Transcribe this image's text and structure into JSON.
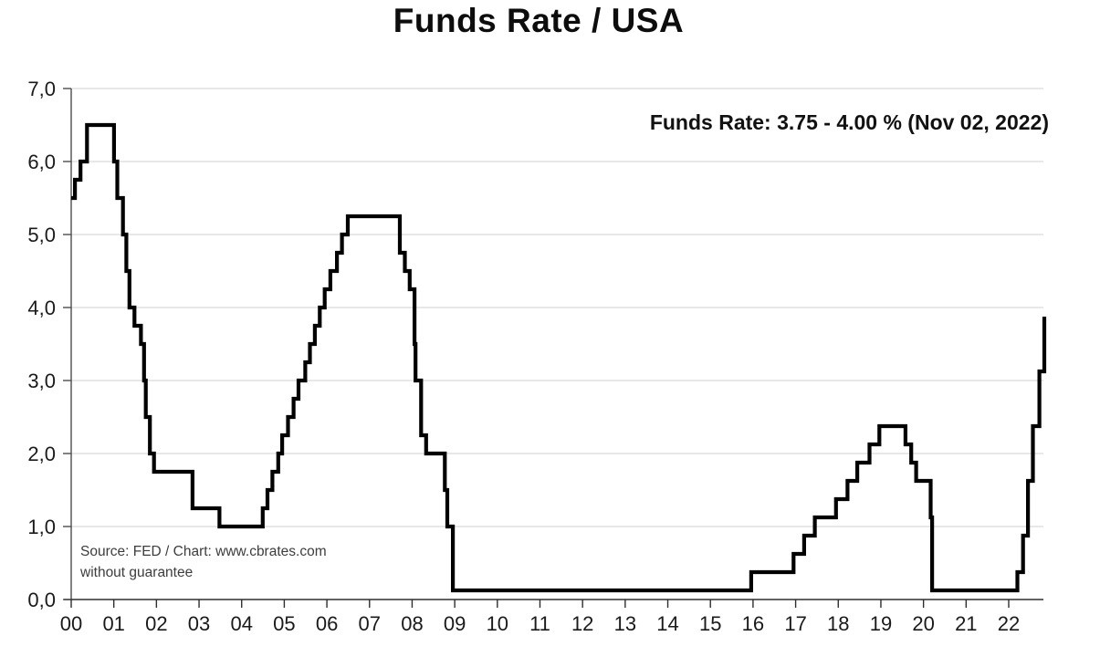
{
  "title": "Funds Rate / USA",
  "annotation": "Funds Rate: 3.75 - 4.00 % (Nov 02, 2022)",
  "source": {
    "line1": "Source: FED /  Chart: www.cbrates.com",
    "line2": "without guarantee"
  },
  "chart_data": {
    "type": "line",
    "step": "after",
    "title": "Funds Rate / USA",
    "xlabel": "",
    "ylabel": "",
    "ylim": [
      0,
      7
    ],
    "x_range_years": [
      2000,
      2023.05
    ],
    "grid": "horizontal",
    "legend": "none",
    "colors": {
      "line": "#000000",
      "grid": "#d9d9d9",
      "axis": "#4d4d4d",
      "tick_text": "#1a1a1a"
    },
    "y_ticks": {
      "values": [
        0,
        1,
        2,
        3,
        4,
        5,
        6,
        7
      ],
      "labels": [
        "0,0",
        "1,0",
        "2,0",
        "3,0",
        "4,0",
        "5,0",
        "6,0",
        "7,0"
      ]
    },
    "x_ticks": {
      "start_year": 2000,
      "labels": [
        "00",
        "01",
        "02",
        "03",
        "04",
        "05",
        "06",
        "07",
        "08",
        "09",
        "10",
        "11",
        "12",
        "13",
        "14",
        "15",
        "16",
        "17",
        "18",
        "19",
        "20",
        "21",
        "22"
      ]
    },
    "series": [
      {
        "name": "funds-rate-percent",
        "points": [
          [
            "2000-01-01",
            5.5
          ],
          [
            "2000-02-02",
            5.75
          ],
          [
            "2000-03-21",
            6.0
          ],
          [
            "2000-05-16",
            6.5
          ],
          [
            "2001-01-03",
            6.0
          ],
          [
            "2001-01-31",
            5.5
          ],
          [
            "2001-03-20",
            5.0
          ],
          [
            "2001-04-18",
            4.5
          ],
          [
            "2001-05-15",
            4.0
          ],
          [
            "2001-06-27",
            3.75
          ],
          [
            "2001-08-21",
            3.5
          ],
          [
            "2001-09-17",
            3.0
          ],
          [
            "2001-10-02",
            2.5
          ],
          [
            "2001-11-06",
            2.0
          ],
          [
            "2001-12-11",
            1.75
          ],
          [
            "2002-11-06",
            1.25
          ],
          [
            "2003-06-25",
            1.0
          ],
          [
            "2004-06-30",
            1.25
          ],
          [
            "2004-08-10",
            1.5
          ],
          [
            "2004-09-21",
            1.75
          ],
          [
            "2004-11-10",
            2.0
          ],
          [
            "2004-12-14",
            2.25
          ],
          [
            "2005-02-02",
            2.5
          ],
          [
            "2005-03-22",
            2.75
          ],
          [
            "2005-05-03",
            3.0
          ],
          [
            "2005-06-30",
            3.25
          ],
          [
            "2005-08-09",
            3.5
          ],
          [
            "2005-09-20",
            3.75
          ],
          [
            "2005-11-01",
            4.0
          ],
          [
            "2005-12-13",
            4.25
          ],
          [
            "2006-01-31",
            4.5
          ],
          [
            "2006-03-28",
            4.75
          ],
          [
            "2006-05-10",
            5.0
          ],
          [
            "2006-06-29",
            5.25
          ],
          [
            "2007-09-18",
            4.75
          ],
          [
            "2007-10-31",
            4.5
          ],
          [
            "2007-12-11",
            4.25
          ],
          [
            "2008-01-22",
            3.5
          ],
          [
            "2008-01-30",
            3.0
          ],
          [
            "2008-03-18",
            2.25
          ],
          [
            "2008-04-30",
            2.0
          ],
          [
            "2008-10-08",
            1.5
          ],
          [
            "2008-10-29",
            1.0
          ],
          [
            "2008-12-16",
            0.125
          ],
          [
            "2015-12-16",
            0.375
          ],
          [
            "2016-12-14",
            0.625
          ],
          [
            "2017-03-15",
            0.875
          ],
          [
            "2017-06-14",
            1.125
          ],
          [
            "2017-12-13",
            1.375
          ],
          [
            "2018-03-21",
            1.625
          ],
          [
            "2018-06-13",
            1.875
          ],
          [
            "2018-09-26",
            2.125
          ],
          [
            "2018-12-19",
            2.375
          ],
          [
            "2019-07-31",
            2.125
          ],
          [
            "2019-09-18",
            1.875
          ],
          [
            "2019-10-30",
            1.625
          ],
          [
            "2020-03-03",
            1.125
          ],
          [
            "2020-03-15",
            0.125
          ],
          [
            "2022-03-16",
            0.375
          ],
          [
            "2022-05-04",
            0.875
          ],
          [
            "2022-06-15",
            1.625
          ],
          [
            "2022-07-27",
            2.375
          ],
          [
            "2022-09-21",
            3.125
          ],
          [
            "2022-11-02",
            3.875
          ]
        ]
      }
    ]
  }
}
